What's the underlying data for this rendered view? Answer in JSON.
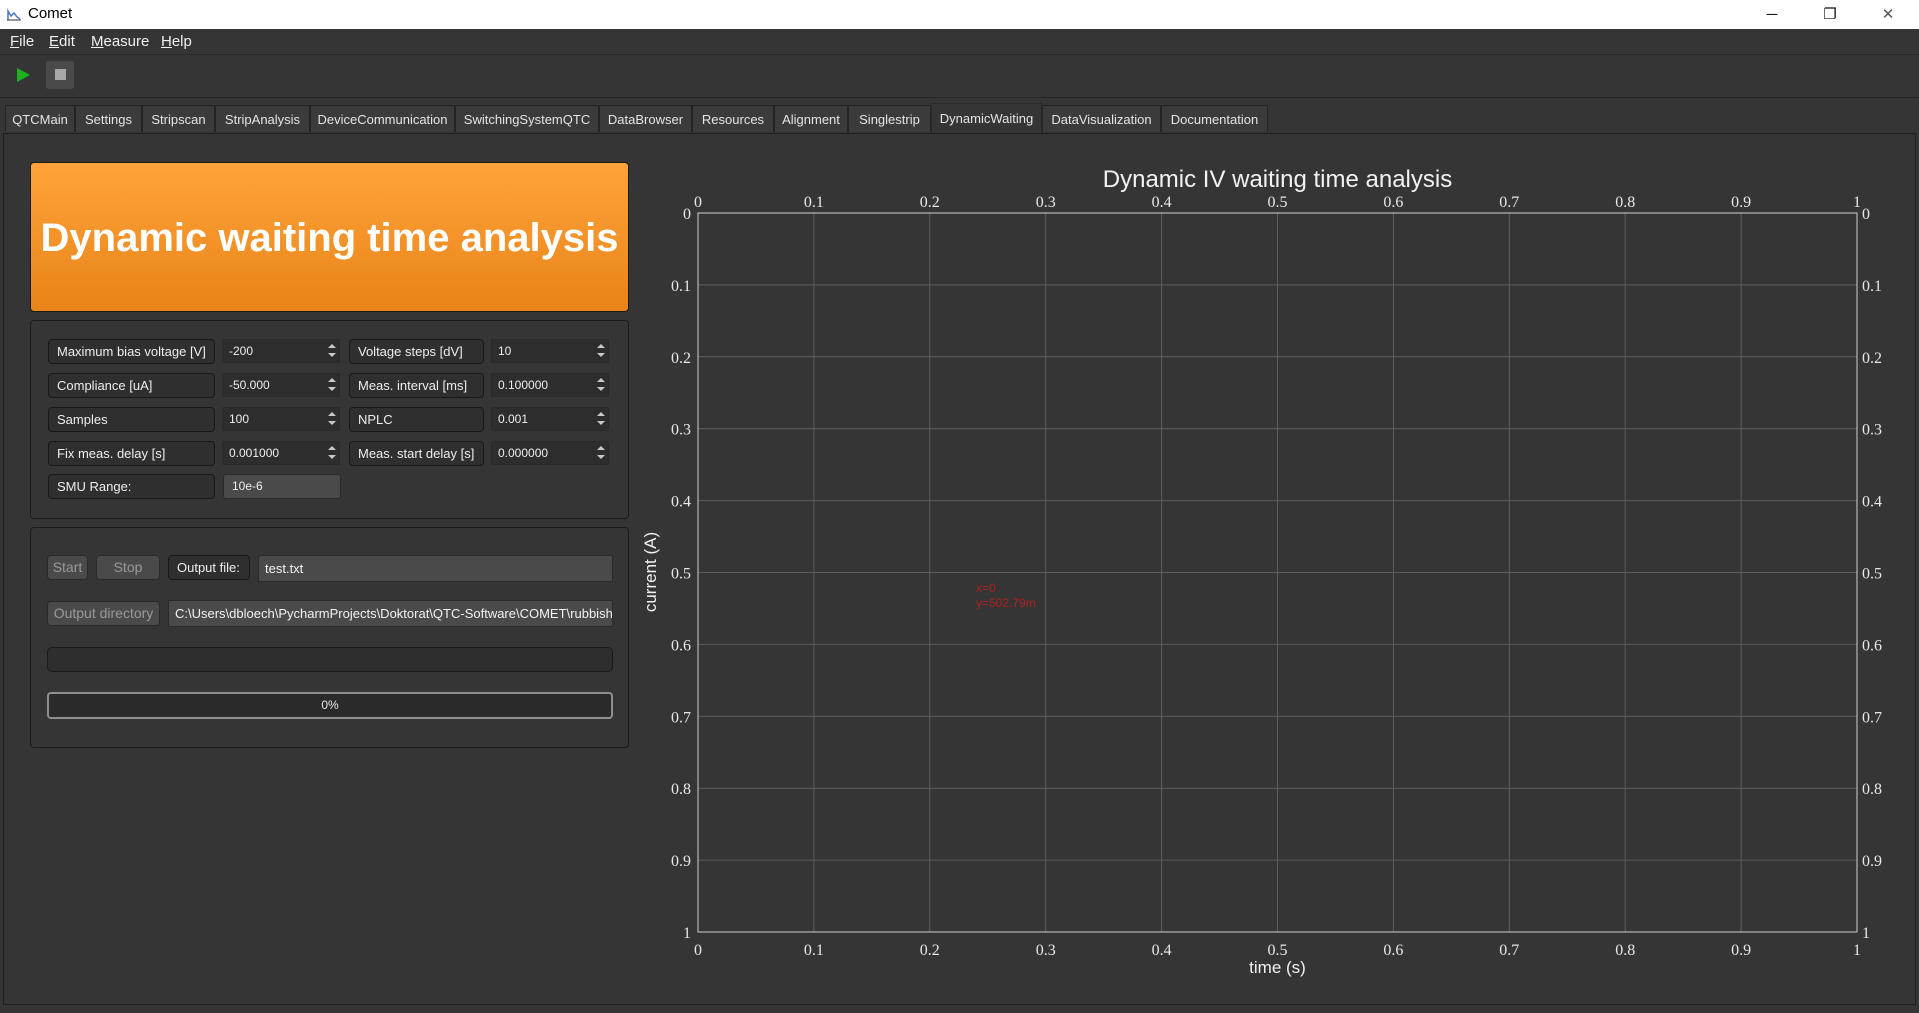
{
  "window": {
    "title": "Comet",
    "minimize_glyph": "─",
    "restore_glyph": "❐",
    "close_glyph": "✕"
  },
  "menu": [
    {
      "label": "File",
      "mnemonic": "F",
      "rest": "ile"
    },
    {
      "label": "Edit",
      "mnemonic": "E",
      "rest": "dit"
    },
    {
      "label": "Measure",
      "mnemonic": "M",
      "rest": "easure"
    },
    {
      "label": "Help",
      "mnemonic": "H",
      "rest": "elp"
    }
  ],
  "toolbar": {
    "play_icon": "play-icon",
    "stop_icon": "stop-icon",
    "play_color": "#1db31d",
    "stop_color": "#9a9a9a"
  },
  "tabs": [
    "QTCMain",
    "Settings",
    "Stripscan",
    "StripAnalysis",
    "DeviceCommunication",
    "SwitchingSystemQTC",
    "DataBrowser",
    "Resources",
    "Alignment",
    "Singlestrip",
    "DynamicWaiting",
    "DataVisualization",
    "Documentation"
  ],
  "active_tab": "DynamicWaiting",
  "banner": {
    "text": "Dynamic waiting time analysis",
    "color_top": "#ffa33a",
    "color_bottom": "#e88418"
  },
  "settings": {
    "max_bias_voltage": {
      "label": "Maximum bias voltage [V]",
      "value": "-200"
    },
    "compliance": {
      "label": "Compliance [uA]",
      "value": "-50.000"
    },
    "samples": {
      "label": "Samples",
      "value": "100"
    },
    "fix_meas_delay": {
      "label": "Fix meas. delay [s]",
      "value": "0.001000"
    },
    "smu_range": {
      "label": "SMU Range:",
      "value": "10e-6"
    },
    "voltage_steps": {
      "label": "Voltage steps [dV]",
      "value": "10"
    },
    "meas_interval": {
      "label": "Meas. interval [ms]",
      "value": "0.100000"
    },
    "nplc": {
      "label": "NPLC",
      "value": "0.001"
    },
    "meas_start_delay": {
      "label": "Meas. start delay [s]",
      "value": "0.000000"
    }
  },
  "controls": {
    "start_label": "Start",
    "stop_label": "Stop",
    "output_file_label": "Output file:",
    "output_file_value": "test.txt",
    "output_directory_label": "Output directory",
    "output_directory_value": "C:\\Users\\dbloech\\PycharmProjects\\Doktorat\\QTC-Software\\COMET\\rubbish",
    "status_text": "",
    "progress": 0,
    "progress_text": "0%"
  },
  "chart_data": {
    "type": "line",
    "title": "Dynamic IV waiting time analysis",
    "xlabel": "time (s)",
    "ylabel": "current (A)",
    "xlim": [
      0,
      1
    ],
    "ylim": [
      0,
      1
    ],
    "y_inverted": true,
    "grid": true,
    "series": [],
    "x_ticks": [
      "0",
      "0.1",
      "0.2",
      "0.3",
      "0.4",
      "0.5",
      "0.6",
      "0.7",
      "0.8",
      "0.9",
      "1"
    ],
    "y_ticks": [
      "0",
      "0.1",
      "0.2",
      "0.3",
      "0.4",
      "0.5",
      "0.6",
      "0.7",
      "0.8",
      "0.9",
      "1"
    ],
    "cursor_readout": {
      "x_text": "x=0",
      "y_text": "y=502.79m",
      "color": "#b02020"
    }
  }
}
